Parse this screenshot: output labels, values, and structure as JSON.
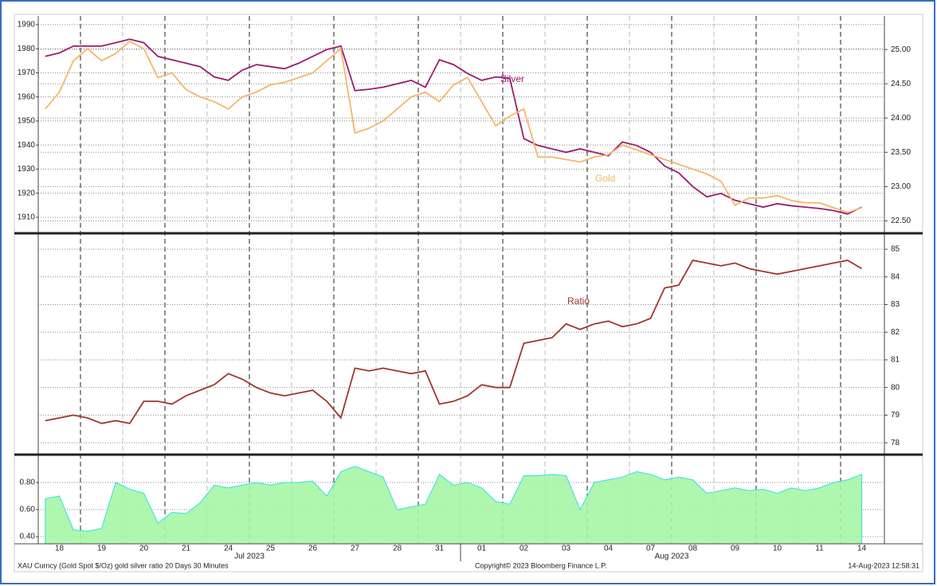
{
  "chart_data": [
    {
      "type": "line",
      "series": [
        {
          "name": "Silver",
          "color": "#9b1b6e",
          "axis": "y2",
          "values": [
            24.9,
            24.95,
            25.05,
            25.05,
            25.05,
            25.1,
            25.15,
            25.1,
            24.9,
            24.85,
            24.8,
            24.75,
            24.6,
            24.55,
            24.7,
            24.78,
            24.75,
            24.72,
            24.8,
            24.9,
            25.0,
            25.05,
            24.4,
            24.42,
            24.45,
            24.5,
            24.55,
            24.45,
            24.85,
            24.78,
            24.65,
            24.55,
            24.6,
            24.58,
            23.7,
            23.6,
            23.55,
            23.5,
            23.55,
            23.5,
            23.45,
            23.65,
            23.6,
            23.5,
            23.3,
            23.2,
            23.0,
            22.85,
            22.9,
            22.8,
            22.75,
            22.7,
            22.75,
            22.72,
            22.7,
            22.68,
            22.65,
            22.6,
            22.7,
            null
          ]
        },
        {
          "name": "Gold",
          "color": "#f5b56a",
          "values": [
            1955,
            1962,
            1975,
            1980,
            1975,
            1978,
            1983,
            1980,
            1968,
            1970,
            1963,
            1960,
            1958,
            1955,
            1960,
            1962,
            1965,
            1966,
            1968,
            1970,
            1975,
            1980,
            1945,
            1947,
            1950,
            1955,
            1960,
            1962,
            1958,
            1965,
            1968,
            1958,
            1948,
            1952,
            1955,
            1935,
            1935,
            1934,
            1933,
            1935,
            1936,
            1940,
            1938,
            1936,
            1934,
            1932,
            1930,
            1928,
            1925,
            1915,
            1918,
            1918,
            1919,
            1917,
            1916,
            1916,
            1914,
            1912,
            1914,
            null
          ]
        }
      ],
      "ylim": [
        1903.7,
        1993.6
      ],
      "yticks": [
        1910,
        1920,
        1930,
        1940,
        1950,
        1960,
        1970,
        1980,
        1990
      ],
      "y2lim": [
        22.33,
        25.49
      ],
      "y2ticks": [
        {
          "value": 22.5,
          "label": "22.50"
        },
        {
          "value": 23,
          "label": "23.00"
        },
        {
          "value": 23.5,
          "label": "23.50"
        },
        {
          "value": 24,
          "label": "24.00"
        },
        {
          "value": 24.5,
          "label": "24.50"
        },
        {
          "value": 25,
          "label": "25.00"
        }
      ],
      "grid": true
    },
    {
      "type": "line",
      "series": [
        {
          "name": "Ratio",
          "color": "#a0362e",
          "axis": "y2",
          "values": [
            78.8,
            78.9,
            79.0,
            78.9,
            78.7,
            78.8,
            78.7,
            79.5,
            79.5,
            79.4,
            79.7,
            79.9,
            80.1,
            80.5,
            80.3,
            80.0,
            79.8,
            79.7,
            79.8,
            79.9,
            79.5,
            78.9,
            80.7,
            80.6,
            80.7,
            80.6,
            80.5,
            80.6,
            79.4,
            79.5,
            79.7,
            80.1,
            80.0,
            80.0,
            81.6,
            81.7,
            81.8,
            82.3,
            82.1,
            82.3,
            82.4,
            82.2,
            82.3,
            82.5,
            83.6,
            83.7,
            84.6,
            84.5,
            84.4,
            84.5,
            84.3,
            84.2,
            84.1,
            84.2,
            84.3,
            84.4,
            84.5,
            84.6,
            84.3,
            null
          ]
        }
      ],
      "y2lim": [
        77.6,
        85.52
      ],
      "y2ticks": [
        78,
        79,
        80,
        81,
        82,
        83,
        84,
        85
      ],
      "grid": true
    },
    {
      "type": "area",
      "categories": [
        null,
        "18",
        null,
        null,
        "19",
        null,
        null,
        "20",
        null,
        null,
        "21",
        null,
        null,
        "24",
        null,
        null,
        "25",
        null,
        null,
        "26",
        null,
        null,
        "27",
        null,
        null,
        "28",
        null,
        null,
        "31",
        null,
        null,
        "01",
        null,
        null,
        "02",
        null,
        null,
        "03",
        null,
        null,
        "04",
        null,
        null,
        "07",
        null,
        null,
        "08",
        null,
        null,
        "09",
        null,
        null,
        "10",
        null,
        null,
        "11",
        null,
        null,
        "14",
        null
      ],
      "x_group_labels": [
        "Jul 2023",
        "Aug 2023"
      ],
      "series": [
        {
          "color": "#33e0e0",
          "fill": "#a6f5a6",
          "values": [
            0.68,
            0.7,
            0.45,
            0.44,
            0.46,
            0.8,
            0.75,
            0.72,
            0.5,
            0.58,
            0.57,
            0.65,
            0.78,
            0.76,
            0.78,
            0.8,
            0.78,
            0.8,
            0.8,
            0.81,
            0.7,
            0.88,
            0.92,
            0.88,
            0.84,
            0.6,
            0.62,
            0.64,
            0.86,
            0.78,
            0.8,
            0.76,
            0.66,
            0.64,
            0.85,
            0.85,
            0.86,
            0.85,
            0.6,
            0.8,
            0.82,
            0.84,
            0.88,
            0.86,
            0.82,
            0.84,
            0.82,
            0.72,
            0.74,
            0.76,
            0.74,
            0.75,
            0.72,
            0.76,
            0.74,
            0.76,
            0.8,
            0.82,
            0.86,
            null
          ]
        }
      ],
      "ylim": [
        0.347,
        1.0
      ],
      "yticks": [
        {
          "value": 0.4,
          "label": "0.40"
        },
        {
          "value": 0.6,
          "label": "0.60"
        },
        {
          "value": 0.8,
          "label": "0.80"
        }
      ],
      "grid": true
    }
  ],
  "footer": {
    "left": "XAU Curncy (Gold Spot   $/Oz) gold silver ratio 20 Days 30 Minutes",
    "center": "Copyright© 2023 Bloomberg Finance L.P.",
    "right": "14-Aug-2023 12:58:31"
  }
}
